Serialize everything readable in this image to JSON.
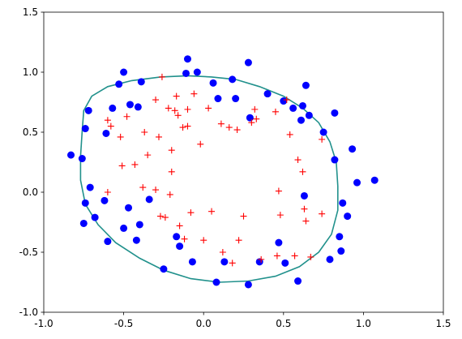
{
  "chart_data": {
    "type": "scatter",
    "title": "",
    "xlabel": "",
    "ylabel": "",
    "xlim": [
      -1.0,
      1.5
    ],
    "ylim": [
      -1.0,
      1.5
    ],
    "xticks": [
      "-1.0",
      "-0.5",
      "0.0",
      "0.5",
      "1.0",
      "1.5"
    ],
    "yticks": [
      "-1.0",
      "-0.5",
      "0.0",
      "0.5",
      "1.0",
      "1.5"
    ],
    "grid": false,
    "colors": {
      "class_0": "#0000ff",
      "class_1": "#ff0000",
      "boundary": "#21918c"
    },
    "series": [
      {
        "marker": "circle",
        "color": "#0000ff",
        "points": [
          [
            -0.83,
            0.31
          ],
          [
            -0.76,
            0.28
          ],
          [
            -0.74,
            0.53
          ],
          [
            -0.72,
            0.68
          ],
          [
            -0.71,
            0.04
          ],
          [
            -0.74,
            -0.09
          ],
          [
            -0.75,
            -0.26
          ],
          [
            -0.68,
            -0.21
          ],
          [
            -0.62,
            -0.07
          ],
          [
            -0.61,
            0.49
          ],
          [
            -0.6,
            -0.41
          ],
          [
            -0.57,
            0.7
          ],
          [
            -0.53,
            0.9
          ],
          [
            -0.5,
            1.0
          ],
          [
            -0.46,
            0.73
          ],
          [
            -0.47,
            -0.13
          ],
          [
            -0.5,
            -0.3
          ],
          [
            -0.42,
            -0.4
          ],
          [
            -0.41,
            0.71
          ],
          [
            -0.4,
            -0.27
          ],
          [
            -0.39,
            0.92
          ],
          [
            -0.34,
            -0.06
          ],
          [
            -0.25,
            -0.64
          ],
          [
            -0.17,
            -0.37
          ],
          [
            -0.15,
            -0.45
          ],
          [
            -0.11,
            0.99
          ],
          [
            -0.1,
            1.11
          ],
          [
            -0.07,
            -0.58
          ],
          [
            -0.04,
            1.0
          ],
          [
            0.06,
            0.91
          ],
          [
            0.08,
            -0.75
          ],
          [
            0.09,
            0.78
          ],
          [
            0.13,
            -0.58
          ],
          [
            0.18,
            0.94
          ],
          [
            0.2,
            0.78
          ],
          [
            0.28,
            1.08
          ],
          [
            0.29,
            0.62
          ],
          [
            0.28,
            -0.77
          ],
          [
            0.35,
            -0.58
          ],
          [
            0.4,
            0.82
          ],
          [
            0.47,
            -0.42
          ],
          [
            0.5,
            0.76
          ],
          [
            0.51,
            -0.59
          ],
          [
            0.56,
            0.7
          ],
          [
            0.59,
            -0.74
          ],
          [
            0.61,
            0.6
          ],
          [
            0.62,
            0.72
          ],
          [
            0.63,
            -0.03
          ],
          [
            0.64,
            0.89
          ],
          [
            0.66,
            0.64
          ],
          [
            0.75,
            0.5
          ],
          [
            0.79,
            -0.56
          ],
          [
            0.82,
            0.66
          ],
          [
            0.82,
            0.27
          ],
          [
            0.85,
            -0.37
          ],
          [
            0.86,
            -0.49
          ],
          [
            0.87,
            -0.09
          ],
          [
            0.9,
            -0.2
          ],
          [
            0.93,
            0.36
          ],
          [
            0.96,
            0.08
          ],
          [
            1.07,
            0.1
          ]
        ]
      },
      {
        "marker": "plus",
        "color": "#ff0000",
        "points": [
          [
            -0.6,
            0.6
          ],
          [
            -0.6,
            0.0
          ],
          [
            -0.58,
            0.55
          ],
          [
            -0.52,
            0.46
          ],
          [
            -0.51,
            0.22
          ],
          [
            -0.48,
            0.63
          ],
          [
            -0.43,
            0.23
          ],
          [
            -0.38,
            0.04
          ],
          [
            -0.37,
            0.5
          ],
          [
            -0.35,
            0.31
          ],
          [
            -0.3,
            0.02
          ],
          [
            -0.3,
            0.77
          ],
          [
            -0.28,
            0.46
          ],
          [
            -0.27,
            -0.2
          ],
          [
            -0.26,
            0.96
          ],
          [
            -0.24,
            -0.21
          ],
          [
            -0.22,
            0.7
          ],
          [
            -0.21,
            -0.02
          ],
          [
            -0.2,
            0.17
          ],
          [
            -0.2,
            0.35
          ],
          [
            -0.18,
            0.68
          ],
          [
            -0.17,
            0.8
          ],
          [
            -0.16,
            0.64
          ],
          [
            -0.15,
            -0.28
          ],
          [
            -0.13,
            0.54
          ],
          [
            -0.12,
            -0.39
          ],
          [
            -0.1,
            0.69
          ],
          [
            -0.1,
            0.55
          ],
          [
            -0.08,
            -0.17
          ],
          [
            -0.06,
            0.82
          ],
          [
            -0.02,
            0.4
          ],
          [
            0.0,
            -0.4
          ],
          [
            0.03,
            0.7
          ],
          [
            0.05,
            -0.16
          ],
          [
            0.11,
            0.57
          ],
          [
            0.12,
            -0.5
          ],
          [
            0.16,
            0.54
          ],
          [
            0.18,
            -0.59
          ],
          [
            0.21,
            0.52
          ],
          [
            0.22,
            -0.4
          ],
          [
            0.25,
            -0.2
          ],
          [
            0.3,
            0.58
          ],
          [
            0.32,
            0.69
          ],
          [
            0.33,
            0.61
          ],
          [
            0.36,
            -0.56
          ],
          [
            0.45,
            0.67
          ],
          [
            0.46,
            -0.53
          ],
          [
            0.47,
            0.01
          ],
          [
            0.48,
            -0.19
          ],
          [
            0.52,
            0.77
          ],
          [
            0.54,
            0.48
          ],
          [
            0.57,
            -0.53
          ],
          [
            0.59,
            0.27
          ],
          [
            0.62,
            0.17
          ],
          [
            0.63,
            -0.14
          ],
          [
            0.64,
            -0.24
          ],
          [
            0.67,
            -0.54
          ],
          [
            0.74,
            0.44
          ],
          [
            0.74,
            -0.18
          ]
        ]
      }
    ],
    "decision_boundary": {
      "style": "line",
      "color": "#21918c",
      "points": [
        [
          -0.27,
          0.96
        ],
        [
          -0.1,
          0.97
        ],
        [
          0.05,
          0.96
        ],
        [
          0.2,
          0.94
        ],
        [
          0.35,
          0.88
        ],
        [
          0.5,
          0.8
        ],
        [
          0.62,
          0.7
        ],
        [
          0.72,
          0.58
        ],
        [
          0.79,
          0.42
        ],
        [
          0.83,
          0.25
        ],
        [
          0.84,
          0.05
        ],
        [
          0.84,
          -0.15
        ],
        [
          0.8,
          -0.35
        ],
        [
          0.72,
          -0.5
        ],
        [
          0.6,
          -0.62
        ],
        [
          0.45,
          -0.7
        ],
        [
          0.28,
          -0.74
        ],
        [
          0.1,
          -0.75
        ],
        [
          -0.08,
          -0.72
        ],
        [
          -0.25,
          -0.65
        ],
        [
          -0.4,
          -0.55
        ],
        [
          -0.55,
          -0.42
        ],
        [
          -0.66,
          -0.27
        ],
        [
          -0.74,
          -0.1
        ],
        [
          -0.77,
          0.1
        ],
        [
          -0.77,
          0.3
        ],
        [
          -0.76,
          0.5
        ],
        [
          -0.75,
          0.68
        ],
        [
          -0.7,
          0.8
        ],
        [
          -0.6,
          0.88
        ],
        [
          -0.45,
          0.93
        ],
        [
          -0.27,
          0.96
        ]
      ]
    }
  }
}
